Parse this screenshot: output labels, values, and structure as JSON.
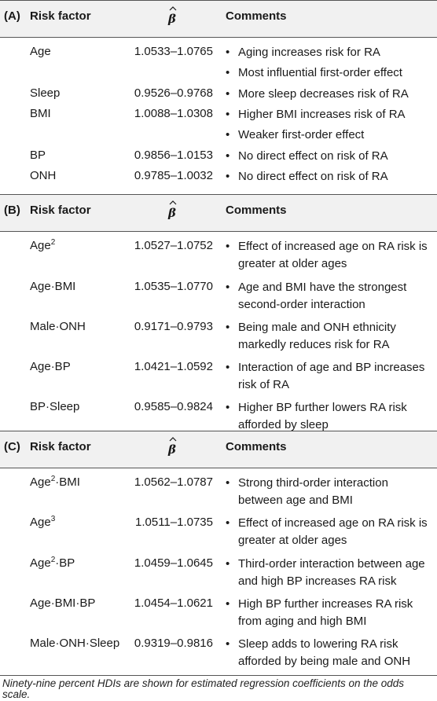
{
  "column_headers": {
    "risk_factor": "Risk factor",
    "beta_symbol": "β̂",
    "comments": "Comments"
  },
  "sections": [
    {
      "label": "(A)",
      "rows": [
        {
          "name": "Age",
          "range": "1.0533–1.0765",
          "comments": [
            "Aging increases risk for RA",
            "Most influential first-order effect"
          ]
        },
        {
          "name": "Sleep",
          "range": "0.9526–0.9768",
          "comments": [
            "More sleep decreases risk of RA"
          ]
        },
        {
          "name": "BMI",
          "range": "1.0088–1.0308",
          "comments": [
            "Higher BMI increases risk of RA",
            "Weaker first-order effect"
          ]
        },
        {
          "name": "BP",
          "range": "0.9856–1.0153",
          "comments": [
            "No direct effect on risk of RA"
          ]
        },
        {
          "name": "ONH",
          "range": "0.9785–1.0032",
          "comments": [
            "No direct effect on risk of RA"
          ]
        }
      ]
    },
    {
      "label": "(B)",
      "rows": [
        {
          "name": "Age²",
          "range": "1.0527–1.0752",
          "comments": [
            "Effect of increased age on RA risk is greater at older ages"
          ]
        },
        {
          "name": "Age·BMI",
          "range": "1.0535–1.0770",
          "comments": [
            "Age and BMI have the strongest second-order interaction"
          ]
        },
        {
          "name": "Male·ONH",
          "range": "0.9171–0.9793",
          "comments": [
            "Being male and ONH ethnicity markedly reduces risk for RA"
          ]
        },
        {
          "name": "Age·BP",
          "range": "1.0421–1.0592",
          "comments": [
            "Interaction of age and BP increases risk of RA"
          ]
        },
        {
          "name": "BP·Sleep",
          "range": "0.9585–0.9824",
          "comments": [
            "Higher BP further lowers RA risk afforded by sleep"
          ]
        }
      ]
    },
    {
      "label": "(C)",
      "rows": [
        {
          "name": "Age²·BMI",
          "range": "1.0562–1.0787",
          "comments": [
            "Strong third-order interaction between age and BMI"
          ]
        },
        {
          "name": "Age³",
          "range": "1.0511–1.0735",
          "comments": [
            "Effect of increased age on RA risk is greater at older ages"
          ]
        },
        {
          "name": "Age²·BP",
          "range": "1.0459–1.0645",
          "comments": [
            "Third-order interaction between age and high BP increases RA risk"
          ]
        },
        {
          "name": "Age·BMI·BP",
          "range": "1.0454–1.0621",
          "comments": [
            "High BP further increases RA risk from aging and high BMI"
          ]
        },
        {
          "name": "Male·ONH·Sleep",
          "range": "0.9319–0.9816",
          "comments": [
            "Sleep adds to lowering RA risk afforded by being male and ONH"
          ]
        }
      ]
    }
  ],
  "footnote": "Ninety-nine percent HDIs are shown for estimated regression coefficients on the odds scale."
}
